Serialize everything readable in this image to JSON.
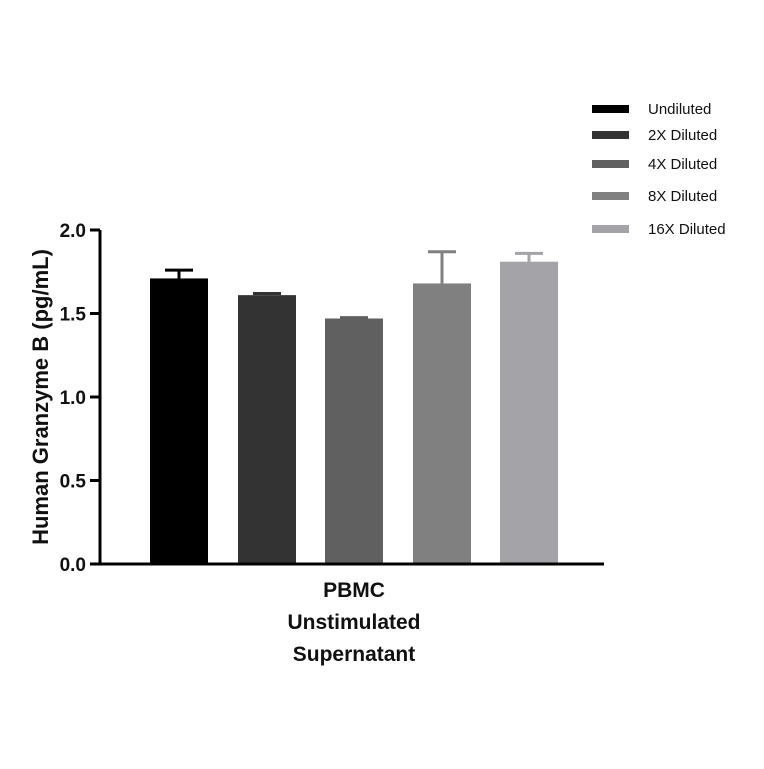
{
  "chart_data": {
    "type": "bar",
    "title": "",
    "xlabel": "",
    "ylabel": "Human Granzyme B (pg/mL)",
    "categories": [
      "PBMC",
      "Unstimulated",
      "Supernatant"
    ],
    "category_group": "PBMC Unstimulated Supernatant",
    "ylim": [
      0,
      2.0
    ],
    "yticks": [
      0.0,
      0.5,
      1.0,
      1.5,
      2.0
    ],
    "ytick_labels": [
      "0.0",
      "0.5",
      "1.0",
      "1.5",
      "2.0"
    ],
    "legend_position": "top-right",
    "series": [
      {
        "name": "Undiluted",
        "value": 1.71,
        "error": 0.05,
        "color": "#000000"
      },
      {
        "name": "2X Diluted",
        "value": 1.61,
        "error": 0.01,
        "color": "#333333"
      },
      {
        "name": "4X Diluted",
        "value": 1.47,
        "error": 0.005,
        "color": "#606060"
      },
      {
        "name": "8X Diluted",
        "value": 1.68,
        "error": 0.19,
        "color": "#808080"
      },
      {
        "name": "16X Diluted",
        "value": 1.81,
        "error": 0.05,
        "color": "#a3a3a8"
      }
    ]
  }
}
